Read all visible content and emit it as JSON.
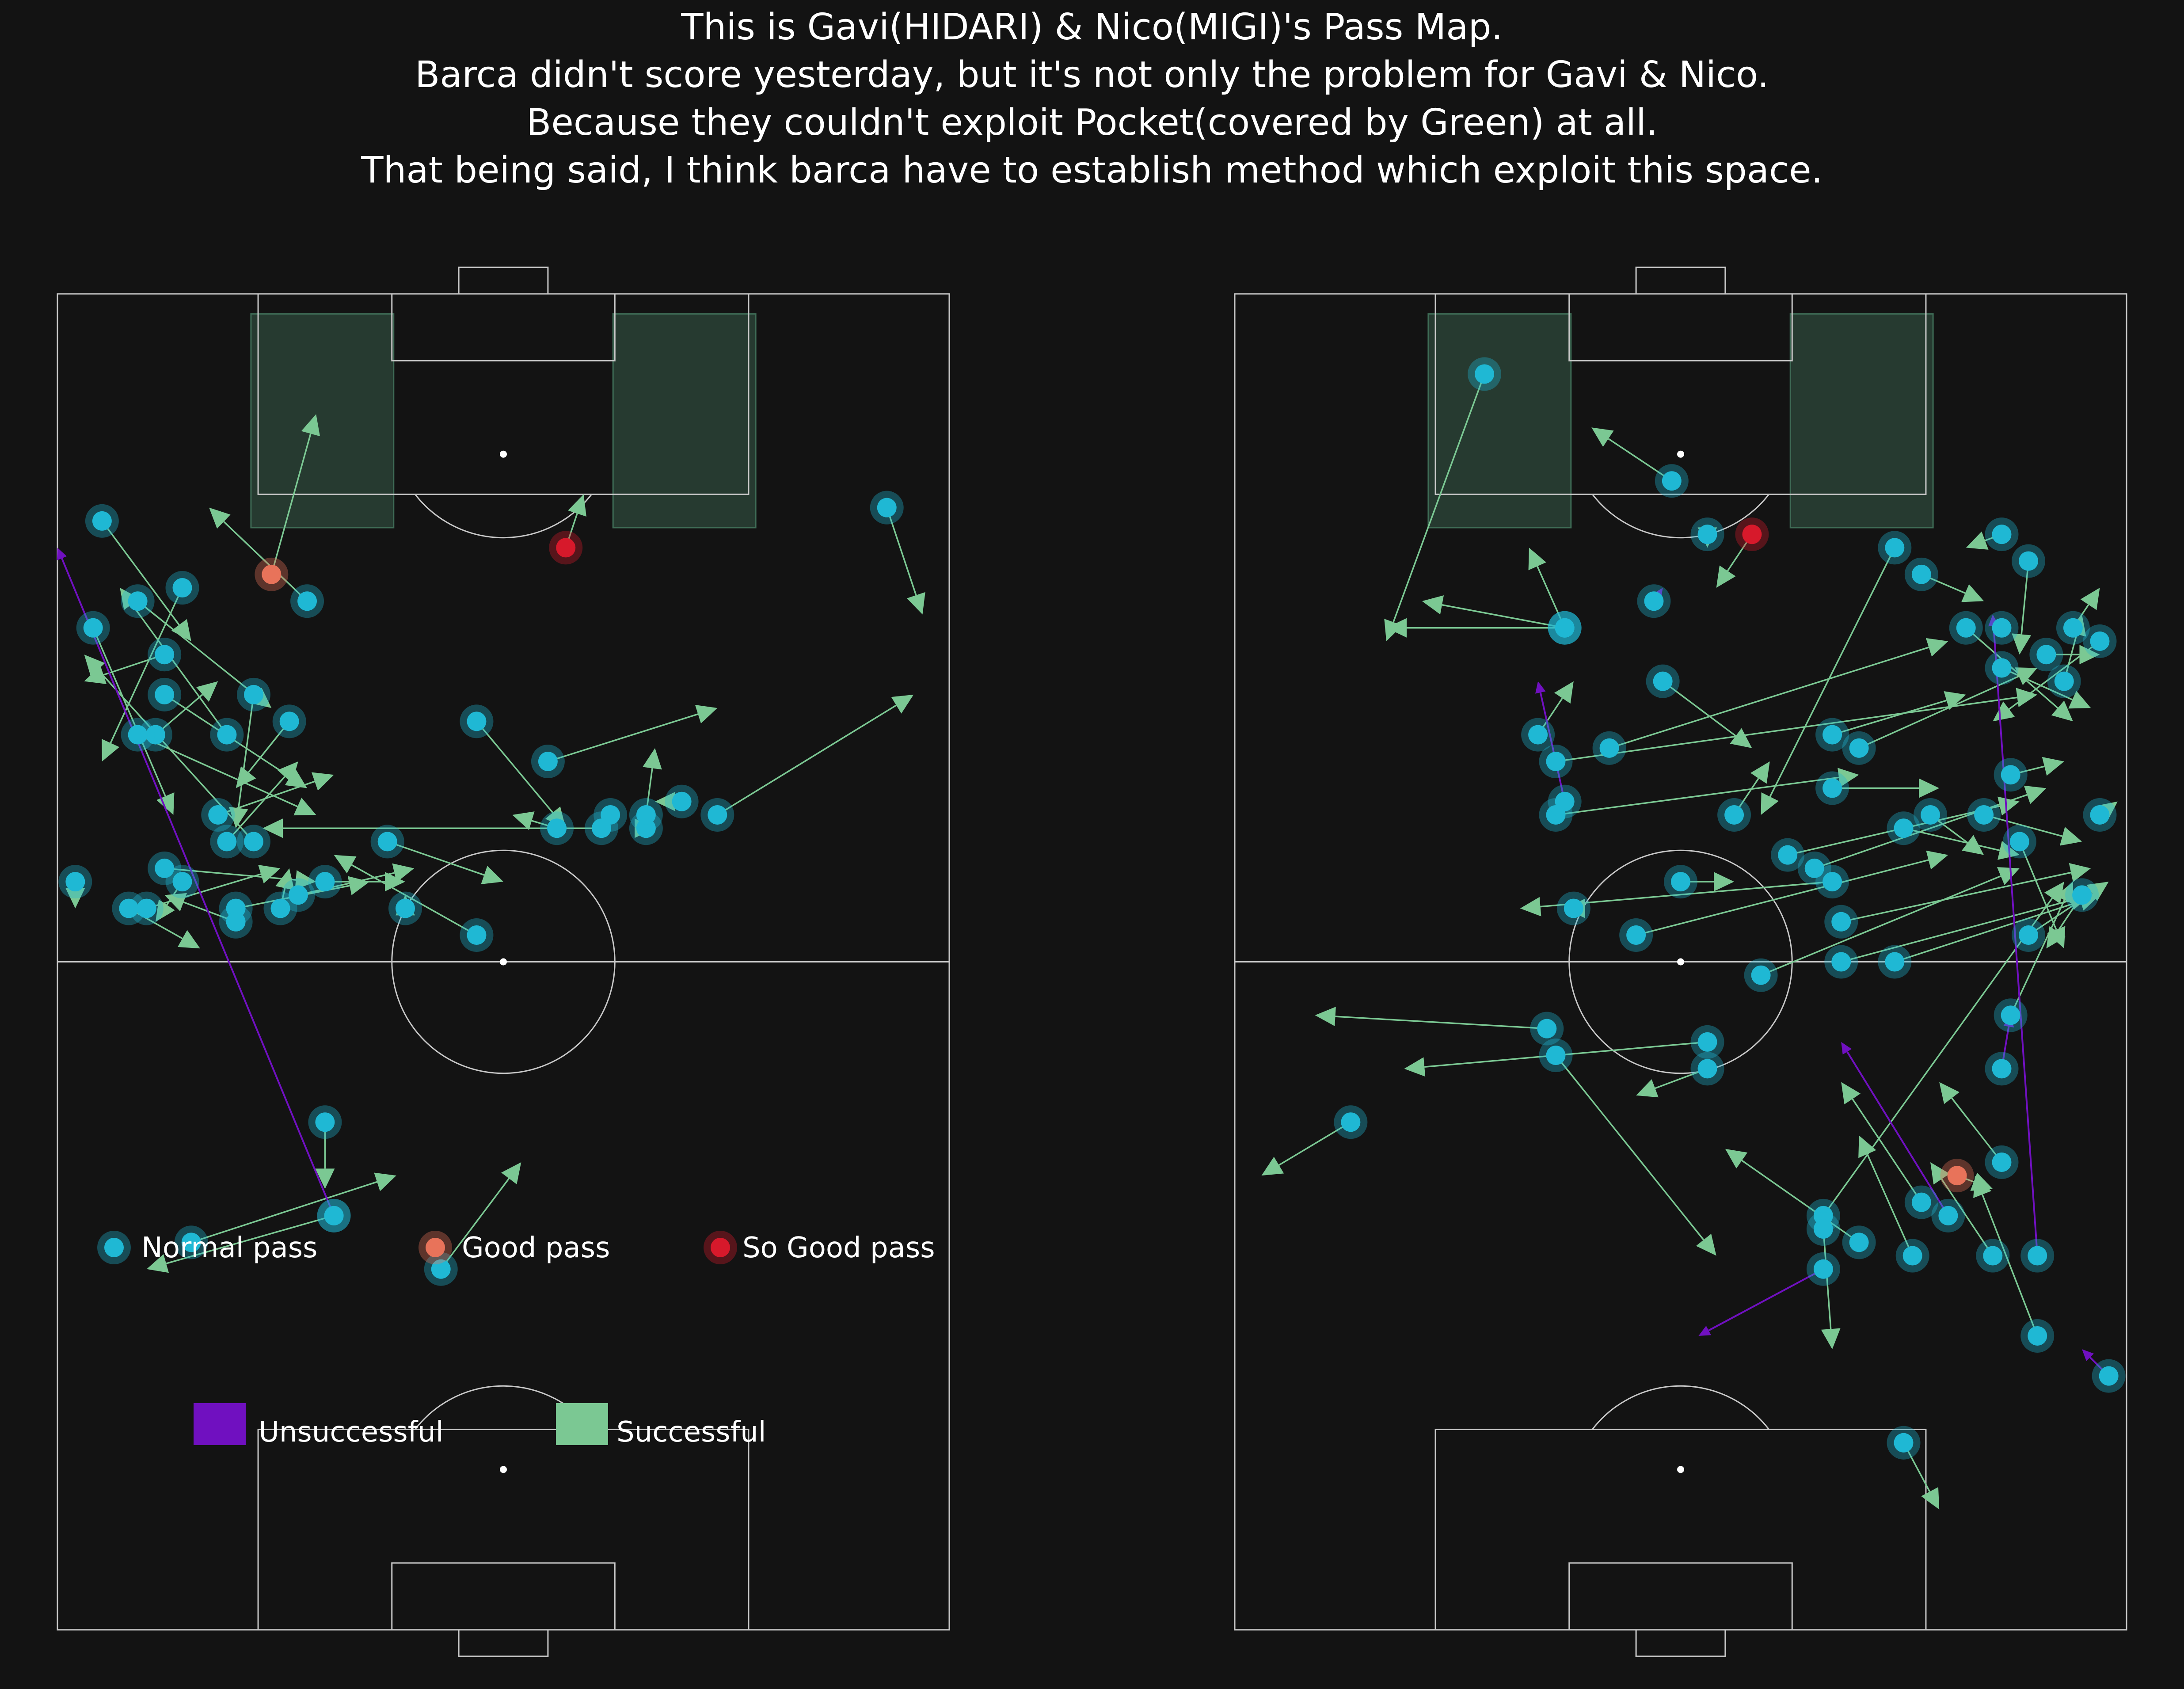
{
  "title_lines": [
    "This is Gavi(HIDARI) & Nico(MIGI)'s Pass Map.",
    "Barca didn't score yesterday, but it's not only the problem for Gavi & Nico.",
    "Because they couldn't exploit Pocket(covered by Green) at all.",
    "That being said, I think barca have to establish method which exploit this space."
  ],
  "colors": {
    "background": "#131313",
    "pitch_lines": "#c8c8c8",
    "pocket_fill": "#3e6b55",
    "normal_pass": "#1fb8d4",
    "good_pass": "#e8735a",
    "so_good_pass": "#d7192b",
    "successful": "#7bc893",
    "unsuccessful": "#7010c0"
  },
  "legend": {
    "normal": "Normal pass",
    "good": "Good pass",
    "so_good": "So Good pass",
    "unsuccessful": "Unsuccessful",
    "successful": "Successful"
  },
  "chart_data": [
    {
      "type": "scatter",
      "player": "Gavi",
      "orientation": "vertical pitch, attacking upward; coordinates in pitch units (x 0-100 left to right, y 0-100 own goal to opponent goal)",
      "passes": [
        {
          "x": 5,
          "y": 83,
          "ex": 15,
          "ey": 74,
          "quality": "normal",
          "outcome": "successful"
        },
        {
          "x": 9,
          "y": 77,
          "ex": 24,
          "ey": 69,
          "quality": "normal",
          "outcome": "successful"
        },
        {
          "x": 4,
          "y": 75,
          "ex": 13,
          "ey": 61,
          "quality": "normal",
          "outcome": "successful"
        },
        {
          "x": 19,
          "y": 67,
          "ex": 7,
          "ey": 78,
          "quality": "normal",
          "outcome": "successful"
        },
        {
          "x": 12,
          "y": 73,
          "ex": 3,
          "ey": 71,
          "quality": "normal",
          "outcome": "successful"
        },
        {
          "x": 14,
          "y": 78,
          "ex": 5,
          "ey": 65,
          "quality": "normal",
          "outcome": "successful"
        },
        {
          "x": 22,
          "y": 59,
          "ex": 3,
          "ey": 73,
          "quality": "normal",
          "outcome": "successful"
        },
        {
          "x": 12,
          "y": 70,
          "ex": 28,
          "ey": 63,
          "quality": "normal",
          "outcome": "successful"
        },
        {
          "x": 28,
          "y": 77,
          "ex": 17,
          "ey": 84,
          "quality": "normal",
          "outcome": "successful"
        },
        {
          "x": 26,
          "y": 68,
          "ex": 20,
          "ey": 63,
          "quality": "normal",
          "outcome": "successful"
        },
        {
          "x": 11,
          "y": 67,
          "ex": 18,
          "ey": 71,
          "quality": "normal",
          "outcome": "successful"
        },
        {
          "x": 19,
          "y": 59,
          "ex": 27,
          "ey": 65,
          "quality": "normal",
          "outcome": "successful"
        },
        {
          "x": 9,
          "y": 67,
          "ex": 29,
          "ey": 61,
          "quality": "normal",
          "outcome": "successful"
        },
        {
          "x": 18,
          "y": 61,
          "ex": 31,
          "ey": 64,
          "quality": "normal",
          "outcome": "successful"
        },
        {
          "x": 2,
          "y": 56,
          "ex": 2,
          "ey": 54,
          "quality": "normal",
          "outcome": "successful"
        },
        {
          "x": 12,
          "y": 57,
          "ex": 29,
          "ey": 56,
          "quality": "normal",
          "outcome": "successful"
        },
        {
          "x": 20,
          "y": 54,
          "ex": 35,
          "ey": 56,
          "quality": "normal",
          "outcome": "successful"
        },
        {
          "x": 37,
          "y": 59,
          "ex": 50,
          "ey": 56,
          "quality": "normal",
          "outcome": "successful"
        },
        {
          "x": 47,
          "y": 52,
          "ex": 31,
          "ey": 58,
          "quality": "normal",
          "outcome": "successful"
        },
        {
          "x": 14,
          "y": 56,
          "ex": 11,
          "ey": 53,
          "quality": "normal",
          "outcome": "successful"
        },
        {
          "x": 8,
          "y": 54,
          "ex": 16,
          "ey": 51,
          "quality": "normal",
          "outcome": "successful"
        },
        {
          "x": 10,
          "y": 54,
          "ex": 25,
          "ey": 57,
          "quality": "normal",
          "outcome": "successful"
        },
        {
          "x": 25,
          "y": 54,
          "ex": 26,
          "ey": 57,
          "quality": "normal",
          "outcome": "successful"
        },
        {
          "x": 27,
          "y": 55,
          "ex": 40,
          "ey": 57,
          "quality": "normal",
          "outcome": "successful"
        },
        {
          "x": 20,
          "y": 53,
          "ex": 12,
          "ey": 55,
          "quality": "normal",
          "outcome": "successful"
        },
        {
          "x": 30,
          "y": 56,
          "ex": 39,
          "ey": 56,
          "quality": "normal",
          "outcome": "successful"
        },
        {
          "x": 39,
          "y": 54,
          "ex": 39,
          "ey": 55,
          "quality": "normal",
          "outcome": "successful"
        },
        {
          "x": 62,
          "y": 61,
          "ex": 62,
          "ey": 61,
          "quality": "normal",
          "outcome": "successful"
        },
        {
          "x": 56,
          "y": 60,
          "ex": 51,
          "ey": 61,
          "quality": "normal",
          "outcome": "successful"
        },
        {
          "x": 61,
          "y": 60,
          "ex": 23,
          "ey": 60,
          "quality": "normal",
          "outcome": "successful"
        },
        {
          "x": 66,
          "y": 60,
          "ex": 67,
          "ey": 60,
          "quality": "normal",
          "outcome": "successful"
        },
        {
          "x": 47,
          "y": 68,
          "ex": 57,
          "ey": 60,
          "quality": "normal",
          "outcome": "successful"
        },
        {
          "x": 55,
          "y": 65,
          "ex": 74,
          "ey": 69,
          "quality": "normal",
          "outcome": "successful"
        },
        {
          "x": 70,
          "y": 62,
          "ex": 67,
          "ey": 62,
          "quality": "normal",
          "outcome": "successful"
        },
        {
          "x": 66,
          "y": 61,
          "ex": 67,
          "ey": 66,
          "quality": "normal",
          "outcome": "successful"
        },
        {
          "x": 74,
          "y": 61,
          "ex": 96,
          "ey": 70,
          "quality": "normal",
          "outcome": "successful"
        },
        {
          "x": 93,
          "y": 84,
          "ex": 97,
          "ey": 76,
          "quality": "normal",
          "outcome": "successful"
        },
        {
          "x": 22,
          "y": 70,
          "ex": 20,
          "ey": 60,
          "quality": "normal",
          "outcome": "successful"
        },
        {
          "x": 24,
          "y": 79,
          "ex": 29,
          "ey": 91,
          "quality": "good",
          "outcome": "successful"
        },
        {
          "x": 57,
          "y": 81,
          "ex": 59,
          "ey": 85,
          "quality": "so_good",
          "outcome": "successful"
        },
        {
          "x": 30,
          "y": 38,
          "ex": 30,
          "ey": 33,
          "quality": "normal",
          "outcome": "successful"
        },
        {
          "x": 31,
          "y": 31,
          "ex": 10,
          "ey": 27,
          "quality": "normal",
          "outcome": "successful"
        },
        {
          "x": 15,
          "y": 29,
          "ex": 38,
          "ey": 34,
          "quality": "normal",
          "outcome": "successful"
        },
        {
          "x": 43,
          "y": 27,
          "ex": 52,
          "ey": 35,
          "quality": "normal",
          "outcome": "successful"
        },
        {
          "x": 31,
          "y": 31,
          "ex": 0,
          "ey": 81,
          "quality": "normal",
          "outcome": "unsuccessful"
        }
      ]
    },
    {
      "type": "scatter",
      "player": "Nico",
      "orientation": "vertical pitch, attacking upward; coordinates in pitch units (x 0-100 left to right, y 0-100 own goal to opponent goal)",
      "passes": [
        {
          "x": 28,
          "y": 94,
          "ex": 17,
          "ey": 74,
          "quality": "normal",
          "outcome": "successful"
        },
        {
          "x": 49,
          "y": 86,
          "ex": 40,
          "ey": 90,
          "quality": "normal",
          "outcome": "successful"
        },
        {
          "x": 74,
          "y": 81,
          "ex": 59,
          "ey": 61,
          "quality": "normal",
          "outcome": "successful"
        },
        {
          "x": 37,
          "y": 75,
          "ex": 33,
          "ey": 81,
          "quality": "normal",
          "outcome": "successful"
        },
        {
          "x": 37,
          "y": 75,
          "ex": 21,
          "ey": 77,
          "quality": "normal",
          "outcome": "successful"
        },
        {
          "x": 37,
          "y": 75,
          "ex": 17,
          "ey": 75,
          "quality": "normal",
          "outcome": "successful"
        },
        {
          "x": 48,
          "y": 71,
          "ex": 58,
          "ey": 66,
          "quality": "normal",
          "outcome": "successful"
        },
        {
          "x": 34,
          "y": 67,
          "ex": 38,
          "ey": 71,
          "quality": "normal",
          "outcome": "successful"
        },
        {
          "x": 36,
          "y": 61,
          "ex": 70,
          "ey": 64,
          "quality": "normal",
          "outcome": "successful"
        },
        {
          "x": 67,
          "y": 63,
          "ex": 79,
          "ey": 63,
          "quality": "normal",
          "outcome": "successful"
        },
        {
          "x": 50,
          "y": 56,
          "ex": 56,
          "ey": 56,
          "quality": "normal",
          "outcome": "successful"
        },
        {
          "x": 53,
          "y": 82,
          "ex": 53,
          "ey": 81,
          "quality": "normal",
          "outcome": "successful"
        },
        {
          "x": 42,
          "y": 66,
          "ex": 80,
          "ey": 74,
          "quality": "normal",
          "outcome": "successful"
        },
        {
          "x": 36,
          "y": 65,
          "ex": 90,
          "ey": 70,
          "quality": "normal",
          "outcome": "successful"
        },
        {
          "x": 75,
          "y": 60,
          "ex": 88,
          "ey": 58,
          "quality": "normal",
          "outcome": "successful"
        },
        {
          "x": 67,
          "y": 67,
          "ex": 82,
          "ey": 70,
          "quality": "normal",
          "outcome": "successful"
        },
        {
          "x": 70,
          "y": 66,
          "ex": 90,
          "ey": 72,
          "quality": "normal",
          "outcome": "successful"
        },
        {
          "x": 77,
          "y": 79,
          "ex": 84,
          "ey": 77,
          "quality": "normal",
          "outcome": "successful"
        },
        {
          "x": 82,
          "y": 75,
          "ex": 94,
          "ey": 68,
          "quality": "normal",
          "outcome": "successful"
        },
        {
          "x": 86,
          "y": 72,
          "ex": 96,
          "ey": 69,
          "quality": "normal",
          "outcome": "successful"
        },
        {
          "x": 87,
          "y": 64,
          "ex": 93,
          "ey": 65,
          "quality": "normal",
          "outcome": "successful"
        },
        {
          "x": 78,
          "y": 61,
          "ex": 84,
          "ey": 58,
          "quality": "normal",
          "outcome": "successful"
        },
        {
          "x": 56,
          "y": 61,
          "ex": 60,
          "ey": 65,
          "quality": "normal",
          "outcome": "successful"
        },
        {
          "x": 62,
          "y": 58,
          "ex": 88,
          "ey": 62,
          "quality": "normal",
          "outcome": "successful"
        },
        {
          "x": 65,
          "y": 57,
          "ex": 91,
          "ey": 63,
          "quality": "normal",
          "outcome": "successful"
        },
        {
          "x": 84,
          "y": 61,
          "ex": 95,
          "ey": 59,
          "quality": "normal",
          "outcome": "successful"
        },
        {
          "x": 94,
          "y": 75,
          "ex": 97,
          "ey": 78,
          "quality": "normal",
          "outcome": "successful"
        },
        {
          "x": 97,
          "y": 74,
          "ex": 85,
          "ey": 68,
          "quality": "normal",
          "outcome": "successful"
        },
        {
          "x": 86,
          "y": 82,
          "ex": 82,
          "ey": 81,
          "quality": "normal",
          "outcome": "successful"
        },
        {
          "x": 89,
          "y": 80,
          "ex": 88,
          "ey": 73,
          "quality": "normal",
          "outcome": "successful"
        },
        {
          "x": 86,
          "y": 75,
          "ex": 86,
          "ey": 75,
          "quality": "normal",
          "outcome": "successful"
        },
        {
          "x": 91,
          "y": 73,
          "ex": 97,
          "ey": 73,
          "quality": "normal",
          "outcome": "successful"
        },
        {
          "x": 93,
          "y": 71,
          "ex": 95,
          "ey": 76,
          "quality": "normal",
          "outcome": "successful"
        },
        {
          "x": 97,
          "y": 61,
          "ex": 99,
          "ey": 62,
          "quality": "normal",
          "outcome": "successful"
        },
        {
          "x": 88,
          "y": 59,
          "ex": 93,
          "ey": 51,
          "quality": "normal",
          "outcome": "successful"
        },
        {
          "x": 68,
          "y": 53,
          "ex": 96,
          "ey": 57,
          "quality": "normal",
          "outcome": "successful"
        },
        {
          "x": 45,
          "y": 52,
          "ex": 80,
          "ey": 58,
          "quality": "normal",
          "outcome": "successful"
        },
        {
          "x": 59,
          "y": 49,
          "ex": 88,
          "ey": 57,
          "quality": "normal",
          "outcome": "successful"
        },
        {
          "x": 68,
          "y": 50,
          "ex": 96,
          "ey": 55,
          "quality": "normal",
          "outcome": "successful"
        },
        {
          "x": 74,
          "y": 50,
          "ex": 97,
          "ey": 55,
          "quality": "normal",
          "outcome": "successful"
        },
        {
          "x": 95,
          "y": 55,
          "ex": 91,
          "ey": 51,
          "quality": "normal",
          "outcome": "successful"
        },
        {
          "x": 67,
          "y": 56,
          "ex": 32,
          "ey": 54,
          "quality": "normal",
          "outcome": "successful"
        },
        {
          "x": 38,
          "y": 54,
          "ex": 37,
          "ey": 54,
          "quality": "normal",
          "outcome": "successful"
        },
        {
          "x": 89,
          "y": 52,
          "ex": 98,
          "ey": 56,
          "quality": "normal",
          "outcome": "successful"
        },
        {
          "x": 87,
          "y": 46,
          "ex": 94,
          "ey": 56,
          "quality": "normal",
          "outcome": "successful"
        },
        {
          "x": 35,
          "y": 45,
          "ex": 9,
          "ey": 46,
          "quality": "normal",
          "outcome": "successful"
        },
        {
          "x": 13,
          "y": 38,
          "ex": 3,
          "ey": 34,
          "quality": "normal",
          "outcome": "successful"
        },
        {
          "x": 53,
          "y": 44,
          "ex": 19,
          "ey": 42,
          "quality": "normal",
          "outcome": "successful"
        },
        {
          "x": 53,
          "y": 42,
          "ex": 45,
          "ey": 40,
          "quality": "normal",
          "outcome": "successful"
        },
        {
          "x": 36,
          "y": 43,
          "ex": 54,
          "ey": 28,
          "quality": "normal",
          "outcome": "successful"
        },
        {
          "x": 66,
          "y": 31,
          "ex": 93,
          "ey": 56,
          "quality": "normal",
          "outcome": "successful"
        },
        {
          "x": 70,
          "y": 29,
          "ex": 55,
          "ey": 36,
          "quality": "normal",
          "outcome": "successful"
        },
        {
          "x": 86,
          "y": 35,
          "ex": 79,
          "ey": 41,
          "quality": "normal",
          "outcome": "successful"
        },
        {
          "x": 90,
          "y": 22,
          "ex": 83,
          "ey": 34,
          "quality": "normal",
          "outcome": "successful"
        },
        {
          "x": 66,
          "y": 30,
          "ex": 67,
          "ey": 21,
          "quality": "normal",
          "outcome": "successful"
        },
        {
          "x": 76,
          "y": 28,
          "ex": 70,
          "ey": 37,
          "quality": "normal",
          "outcome": "successful"
        },
        {
          "x": 77,
          "y": 32,
          "ex": 68,
          "ey": 41,
          "quality": "normal",
          "outcome": "successful"
        },
        {
          "x": 85,
          "y": 28,
          "ex": 78,
          "ey": 35,
          "quality": "normal",
          "outcome": "successful"
        },
        {
          "x": 75,
          "y": 14,
          "ex": 79,
          "ey": 9,
          "quality": "normal",
          "outcome": "successful"
        },
        {
          "x": 81,
          "y": 34,
          "ex": 85,
          "ey": 33,
          "quality": "good",
          "outcome": "successful"
        },
        {
          "x": 58,
          "y": 82,
          "ex": 54,
          "ey": 78,
          "quality": "so_good",
          "outcome": "successful"
        },
        {
          "x": 47,
          "y": 77,
          "ex": 48,
          "ey": 78,
          "quality": "normal",
          "outcome": "unsuccessful"
        },
        {
          "x": 37,
          "y": 62,
          "ex": 34,
          "ey": 71,
          "quality": "normal",
          "outcome": "unsuccessful"
        },
        {
          "x": 80,
          "y": 31,
          "ex": 68,
          "ey": 44,
          "quality": "normal",
          "outcome": "unsuccessful"
        },
        {
          "x": 86,
          "y": 42,
          "ex": 87,
          "ey": 46,
          "quality": "normal",
          "outcome": "unsuccessful"
        },
        {
          "x": 90,
          "y": 28,
          "ex": 85,
          "ey": 76,
          "quality": "normal",
          "outcome": "unsuccessful"
        },
        {
          "x": 66,
          "y": 27,
          "ex": 52,
          "ey": 22,
          "quality": "normal",
          "outcome": "unsuccessful"
        },
        {
          "x": 98,
          "y": 19,
          "ex": 95,
          "ey": 21,
          "quality": "normal",
          "outcome": "unsuccessful"
        }
      ]
    }
  ]
}
